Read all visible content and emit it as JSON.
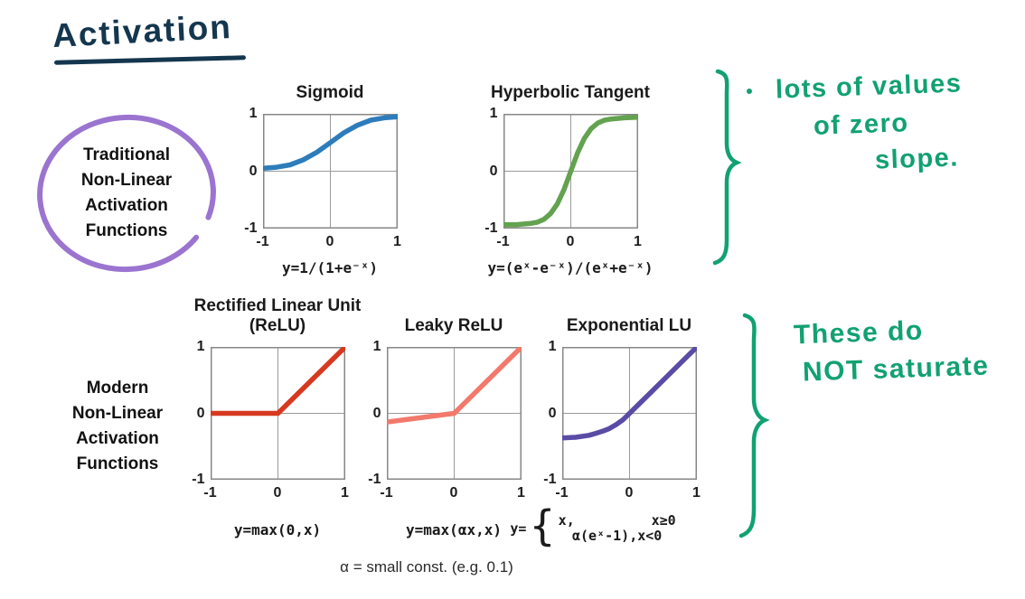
{
  "page": {
    "title": "Activation"
  },
  "groups": {
    "traditional": {
      "lines": [
        "Traditional",
        "Non-Linear",
        "Activation",
        "Functions"
      ],
      "circle_color": "#9b74d0"
    },
    "modern": {
      "lines": [
        "Modern",
        "Non-Linear",
        "Activation",
        "Functions"
      ]
    }
  },
  "annotations": {
    "ink_color": "#12a171",
    "top": {
      "lines": [
        "lots of values",
        "of zero",
        "slope."
      ]
    },
    "bottom": {
      "lines": [
        "These do",
        "NOT saturate"
      ]
    }
  },
  "alpha_note": "α = small const. (e.g. 0.1)",
  "chart_data": [
    {
      "type": "line",
      "title": "Sigmoid",
      "formula": "y=1/(1+e⁻ˣ)",
      "color": "#2d7cbb",
      "xlim": [
        -1,
        1
      ],
      "ylim": [
        -1,
        1
      ],
      "xticks": [
        "-1",
        "0",
        "1"
      ],
      "yticks": [
        "1",
        "0",
        "-1"
      ],
      "grid": true,
      "points": [
        [
          -1,
          0.05
        ],
        [
          -0.8,
          0.07
        ],
        [
          -0.6,
          0.11
        ],
        [
          -0.4,
          0.2
        ],
        [
          -0.2,
          0.33
        ],
        [
          0,
          0.5
        ],
        [
          0.2,
          0.67
        ],
        [
          0.4,
          0.8
        ],
        [
          0.6,
          0.89
        ],
        [
          0.8,
          0.93
        ],
        [
          1,
          0.95
        ]
      ]
    },
    {
      "type": "line",
      "title": "Hyperbolic Tangent",
      "formula": "y=(eˣ-e⁻ˣ)/(eˣ+e⁻ˣ)",
      "color": "#63a24f",
      "xlim": [
        -1,
        1
      ],
      "ylim": [
        -1,
        1
      ],
      "xticks": [
        "-1",
        "0",
        "1"
      ],
      "yticks": [
        "1",
        "0",
        "-1"
      ],
      "grid": true,
      "points": [
        [
          -1,
          -0.93
        ],
        [
          -0.8,
          -0.93
        ],
        [
          -0.6,
          -0.91
        ],
        [
          -0.5,
          -0.89
        ],
        [
          -0.4,
          -0.84
        ],
        [
          -0.3,
          -0.74
        ],
        [
          -0.2,
          -0.57
        ],
        [
          -0.1,
          -0.32
        ],
        [
          0,
          0
        ],
        [
          0.1,
          0.32
        ],
        [
          0.2,
          0.57
        ],
        [
          0.3,
          0.74
        ],
        [
          0.4,
          0.84
        ],
        [
          0.5,
          0.89
        ],
        [
          0.6,
          0.91
        ],
        [
          0.8,
          0.93
        ],
        [
          1,
          0.94
        ]
      ]
    },
    {
      "type": "line",
      "title": "Rectified Linear Unit (ReLU)",
      "formula": "y=max(0,x)",
      "color": "#d6391f",
      "xlim": [
        -1,
        1
      ],
      "ylim": [
        -1,
        1
      ],
      "xticks": [
        "-1",
        "0",
        "1"
      ],
      "yticks": [
        "1",
        "0",
        "-1"
      ],
      "grid": true,
      "points": [
        [
          -1,
          0
        ],
        [
          0,
          0
        ],
        [
          1,
          1
        ]
      ]
    },
    {
      "type": "line",
      "title": "Leaky ReLU",
      "formula": "y=max(αx,x)",
      "color": "#f2796c",
      "xlim": [
        -1,
        1
      ],
      "ylim": [
        -1,
        1
      ],
      "xticks": [
        "-1",
        "0",
        "1"
      ],
      "yticks": [
        "1",
        "0",
        "-1"
      ],
      "grid": true,
      "points": [
        [
          -1,
          -0.13
        ],
        [
          0,
          0
        ],
        [
          1,
          1
        ]
      ]
    },
    {
      "type": "line",
      "title": "Exponential LU",
      "color": "#5a4ba5",
      "formula_prefix": "y=",
      "cases": {
        "row1_left": "x,",
        "row1_right": "x≥0",
        "row2": "α(eˣ-1),x<0"
      },
      "xlim": [
        -1,
        1
      ],
      "ylim": [
        -1,
        1
      ],
      "xticks": [
        "-1",
        "0",
        "1"
      ],
      "yticks": [
        "1",
        "0",
        "-1"
      ],
      "grid": true,
      "points": [
        [
          -1,
          -0.37
        ],
        [
          -0.8,
          -0.36
        ],
        [
          -0.6,
          -0.33
        ],
        [
          -0.5,
          -0.3
        ],
        [
          -0.4,
          -0.27
        ],
        [
          -0.3,
          -0.23
        ],
        [
          -0.2,
          -0.17
        ],
        [
          -0.1,
          -0.1
        ],
        [
          0,
          0
        ],
        [
          0.3,
          0.3
        ],
        [
          0.6,
          0.6
        ],
        [
          1,
          1
        ]
      ]
    }
  ]
}
